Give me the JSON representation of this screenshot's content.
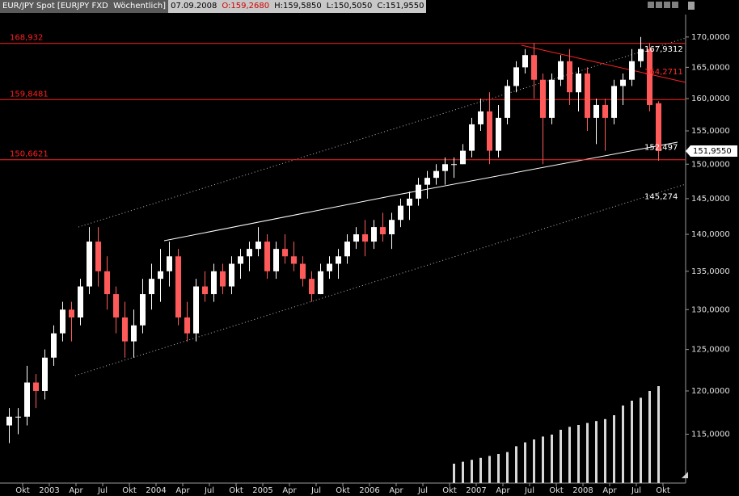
{
  "chart_data": {
    "type": "candlestick",
    "title": "EUR/JPY Spot [EURJPY FXD  Wöchentlich]",
    "date": "07.09.2008",
    "ohlc_labels": [
      "O:159,2680",
      "H:159,5850",
      "L:150,5050",
      "C:151,9550"
    ],
    "x": [
      "2002-08",
      "2002-09",
      "2002-10",
      "2002-11",
      "2002-12",
      "2003-01",
      "2003-02",
      "2003-03",
      "2003-04",
      "2003-05",
      "2003-06",
      "2003-07",
      "2003-08",
      "2003-09",
      "2003-10",
      "2003-11",
      "2003-12",
      "2004-01",
      "2004-02",
      "2004-03",
      "2004-04",
      "2004-05",
      "2004-06",
      "2004-07",
      "2004-08",
      "2004-09",
      "2004-10",
      "2004-11",
      "2004-12",
      "2005-01",
      "2005-02",
      "2005-03",
      "2005-04",
      "2005-05",
      "2005-06",
      "2005-07",
      "2005-08",
      "2005-09",
      "2005-10",
      "2005-11",
      "2005-12",
      "2006-01",
      "2006-02",
      "2006-03",
      "2006-04",
      "2006-05",
      "2006-06",
      "2006-07",
      "2006-08",
      "2006-09",
      "2006-10",
      "2006-11",
      "2006-12",
      "2007-01",
      "2007-02",
      "2007-03",
      "2007-04",
      "2007-05",
      "2007-06",
      "2007-07",
      "2007-08",
      "2007-09",
      "2007-10",
      "2007-11",
      "2007-12",
      "2008-01",
      "2008-02",
      "2008-03",
      "2008-04",
      "2008-05",
      "2008-06",
      "2008-07",
      "2008-08",
      "2008-09"
    ],
    "open": [
      116,
      117,
      117,
      121,
      120,
      124,
      127,
      130,
      129,
      133,
      139,
      135,
      132,
      129,
      126,
      128,
      132,
      134,
      135,
      137,
      129,
      127,
      133,
      132,
      135,
      133,
      136,
      137,
      138,
      139,
      135,
      138,
      137,
      136,
      134,
      132,
      135,
      136,
      137,
      139,
      140,
      139,
      141,
      140,
      142,
      144,
      145,
      147,
      148,
      149,
      150,
      150,
      152,
      156,
      158,
      152,
      157,
      162,
      165,
      167,
      163,
      157,
      163,
      166,
      161,
      164,
      157,
      159,
      157,
      162,
      163,
      166,
      168,
      159.268
    ],
    "high": [
      118,
      118,
      123,
      122,
      125,
      128,
      131,
      131,
      134,
      141,
      141,
      137,
      133,
      131,
      130,
      134,
      136,
      138,
      139,
      138,
      131,
      134,
      135,
      136,
      136,
      137,
      138,
      139,
      141,
      140,
      139,
      140,
      139,
      137,
      135,
      136,
      137,
      138,
      140,
      141,
      142,
      142,
      143,
      143,
      145,
      146,
      148,
      149,
      150,
      151,
      151,
      153,
      157,
      160,
      161,
      159,
      163,
      166,
      168,
      169,
      164,
      164,
      167,
      168,
      165,
      165,
      160,
      160,
      163,
      164,
      168,
      170,
      169,
      159.585
    ],
    "low": [
      114,
      115,
      116,
      118,
      119,
      123,
      126,
      126,
      128,
      132,
      133,
      130,
      127,
      124,
      124,
      127,
      130,
      131,
      133,
      128,
      126,
      126,
      131,
      131,
      132,
      132,
      134,
      135,
      137,
      134,
      134,
      136,
      135,
      133,
      131,
      132,
      134,
      134,
      136,
      138,
      137,
      138,
      139,
      138,
      141,
      142,
      144,
      145,
      147,
      147,
      148,
      150,
      151,
      155,
      150,
      151,
      156,
      161,
      164,
      160,
      150,
      156,
      162,
      159,
      158,
      155,
      153,
      152,
      156,
      159,
      162,
      165,
      158,
      150.505
    ],
    "close": [
      117,
      117,
      121,
      120,
      124,
      127,
      130,
      129,
      133,
      139,
      135,
      132,
      129,
      126,
      128,
      132,
      134,
      135,
      137,
      129,
      127,
      133,
      132,
      135,
      133,
      136,
      137,
      138,
      139,
      135,
      138,
      137,
      136,
      134,
      132,
      135,
      136,
      137,
      139,
      140,
      139,
      141,
      140,
      142,
      144,
      145,
      147,
      148,
      149,
      150,
      150,
      152,
      156,
      158,
      152,
      157,
      162,
      165,
      167,
      163,
      157,
      163,
      166,
      161,
      164,
      157,
      159,
      157,
      162,
      163,
      166,
      168,
      159,
      151.955
    ],
    "volume": [
      null,
      null,
      null,
      null,
      null,
      null,
      null,
      null,
      null,
      null,
      null,
      null,
      null,
      null,
      null,
      null,
      null,
      null,
      null,
      null,
      null,
      null,
      null,
      null,
      null,
      null,
      null,
      null,
      null,
      null,
      null,
      null,
      null,
      null,
      null,
      null,
      null,
      null,
      null,
      null,
      null,
      null,
      null,
      null,
      null,
      null,
      null,
      null,
      null,
      null,
      20,
      22,
      24,
      26,
      28,
      30,
      32,
      38,
      42,
      45,
      48,
      50,
      55,
      58,
      60,
      62,
      64,
      66,
      70,
      80,
      85,
      88,
      95,
      100
    ],
    "volume_lim": [
      0,
      100
    ],
    "up_color": "#ffffff",
    "down_color": "#ff5a5a",
    "volume_color": "#d8d8d8",
    "log_scale": true,
    "ylim": [
      109.6,
      173.8
    ],
    "yticks": [
      {
        "value": 115,
        "label": "115,0000"
      },
      {
        "value": 120,
        "label": "120,0000"
      },
      {
        "value": 125,
        "label": "125,0000"
      },
      {
        "value": 130,
        "label": "130,0000"
      },
      {
        "value": 135,
        "label": "135,0000"
      },
      {
        "value": 140,
        "label": "140,0000"
      },
      {
        "value": 145,
        "label": "145,0000"
      },
      {
        "value": 150,
        "label": "150,0000"
      },
      {
        "value": 155,
        "label": "155,0000"
      },
      {
        "value": 160,
        "label": "160,0000"
      },
      {
        "value": 165,
        "label": "165,0000"
      },
      {
        "value": 170,
        "label": "170,0000"
      }
    ],
    "xticks": [
      {
        "value": "2002-10",
        "label": "Okt"
      },
      {
        "value": "2003-01",
        "label": "2003"
      },
      {
        "value": "2003-04",
        "label": "Apr"
      },
      {
        "value": "2003-07",
        "label": "Jul"
      },
      {
        "value": "2003-10",
        "label": "Okt"
      },
      {
        "value": "2004-01",
        "label": "2004"
      },
      {
        "value": "2004-04",
        "label": "Apr"
      },
      {
        "value": "2004-07",
        "label": "Jul"
      },
      {
        "value": "2004-10",
        "label": "Okt"
      },
      {
        "value": "2005-01",
        "label": "2005"
      },
      {
        "value": "2005-04",
        "label": "Apr"
      },
      {
        "value": "2005-07",
        "label": "Jul"
      },
      {
        "value": "2005-10",
        "label": "Okt"
      },
      {
        "value": "2006-01",
        "label": "2006"
      },
      {
        "value": "2006-04",
        "label": "Apr"
      },
      {
        "value": "2006-07",
        "label": "Jul"
      },
      {
        "value": "2006-10",
        "label": "Okt"
      },
      {
        "value": "2007-01",
        "label": "2007"
      },
      {
        "value": "2007-04",
        "label": "Apr"
      },
      {
        "value": "2007-07",
        "label": "Jul"
      },
      {
        "value": "2007-10",
        "label": "Okt"
      },
      {
        "value": "2008-01",
        "label": "2008"
      },
      {
        "value": "2008-04",
        "label": "Apr"
      },
      {
        "value": "2008-07",
        "label": "Jul"
      },
      {
        "value": "2008-10",
        "label": "Okt"
      }
    ],
    "hlines": [
      {
        "value": 168.932,
        "label": "168,932"
      },
      {
        "value": 159.8481,
        "label": "159,8481"
      },
      {
        "value": 150.6621,
        "label": "150,6621"
      }
    ],
    "hline_color": "#ff2020",
    "annotations": [
      {
        "value": 167.9312,
        "label": "167,9312",
        "color": "#ffffff"
      },
      {
        "value": 164.2711,
        "label": "164,2711",
        "color": "#ff3030"
      },
      {
        "value": 152.497,
        "label": "152,497",
        "color": "#ffffff"
      },
      {
        "value": 145.274,
        "label": "145,274",
        "color": "#ffffff"
      }
    ],
    "last_price": {
      "value": 151.955,
      "label": "151,9550"
    }
  }
}
